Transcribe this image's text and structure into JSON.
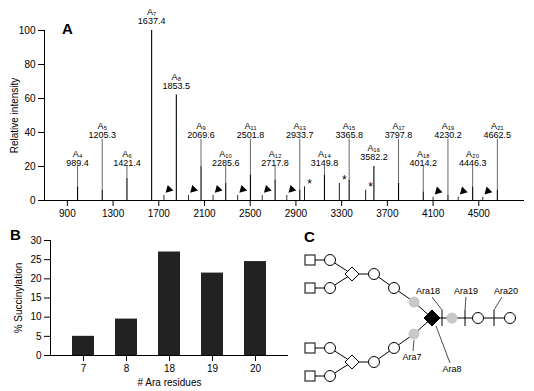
{
  "chart_data": [
    {
      "type": "stem",
      "panel_label": "A",
      "x_label": null,
      "y_label": "Relative intensity",
      "xlim": [
        700,
        4900
      ],
      "xticks": [
        900,
        1300,
        1700,
        2100,
        2500,
        2900,
        3300,
        3700,
        4100,
        4500
      ],
      "ylim": [
        0,
        100
      ],
      "yticks": [
        0,
        20,
        40,
        60,
        80,
        100
      ],
      "color": "#000000",
      "peaks": [
        {
          "label": "A₄",
          "x": 989.4,
          "y": 8
        },
        {
          "label": "A₅",
          "x": 1205.3,
          "y": 6
        },
        {
          "label": "A₆",
          "x": 1421.4,
          "y": 13
        },
        {
          "label": "A₇",
          "x": 1637.4,
          "y": 100
        },
        {
          "label": "A₈",
          "x": 1853.5,
          "y": 62
        },
        {
          "label": "A₉",
          "x": 2069.6,
          "y": 20
        },
        {
          "label": "A₁₀",
          "x": 2285.6,
          "y": 10
        },
        {
          "label": "A₁₁",
          "x": 2501.8,
          "y": 15
        },
        {
          "label": "A₁₂",
          "x": 2717.8,
          "y": 12
        },
        {
          "label": "A₁₃",
          "x": 2933.7,
          "y": 6
        },
        {
          "label": "A₁₄",
          "x": 3149.8,
          "y": 15
        },
        {
          "label": "A₁₅",
          "x": 3365.8,
          "y": 12
        },
        {
          "label": "A₁₆",
          "x": 3582.2,
          "y": 20
        },
        {
          "label": "A₁₇",
          "x": 3797.8,
          "y": 10
        },
        {
          "label": "A₁₈",
          "x": 4014.2,
          "y": 5
        },
        {
          "label": "A₁₉",
          "x": 4230.2,
          "y": 3
        },
        {
          "label": "A₂₀",
          "x": 4446.3,
          "y": 8
        },
        {
          "label": "A₂₁",
          "x": 4662.5,
          "y": 6
        }
      ],
      "other_peaks": [
        {
          "label": "*",
          "x": 2975,
          "y": 8
        },
        {
          "label": "*",
          "x": 3280,
          "y": 10
        },
        {
          "label": "*",
          "x": 3510,
          "y": 6
        }
      ],
      "arrow_peaks": [
        {
          "x": 1745,
          "y": 3
        },
        {
          "x": 1960,
          "y": 3
        },
        {
          "x": 2175,
          "y": 3
        },
        {
          "x": 2390,
          "y": 3
        },
        {
          "x": 2605,
          "y": 3
        },
        {
          "x": 2820,
          "y": 3
        },
        {
          "x": 4100,
          "y": 2
        },
        {
          "x": 4320,
          "y": 2
        },
        {
          "x": 4535,
          "y": 2
        }
      ]
    },
    {
      "type": "bar",
      "panel_label": "B",
      "x_label": "# Ara residues",
      "y_label": "% Succinylation",
      "categories": [
        7,
        8,
        18,
        19,
        20
      ],
      "values": [
        5,
        9.5,
        27,
        21.5,
        24.5
      ],
      "color": "#222222",
      "ylim": [
        0,
        30
      ],
      "yticks": [
        0,
        5,
        10,
        15,
        20,
        25,
        30
      ]
    }
  ],
  "diagram": {
    "panel_label": "C",
    "labels": [
      "Ara18",
      "Ara19",
      "Ara20",
      "Ara8",
      "Ara7"
    ]
  }
}
